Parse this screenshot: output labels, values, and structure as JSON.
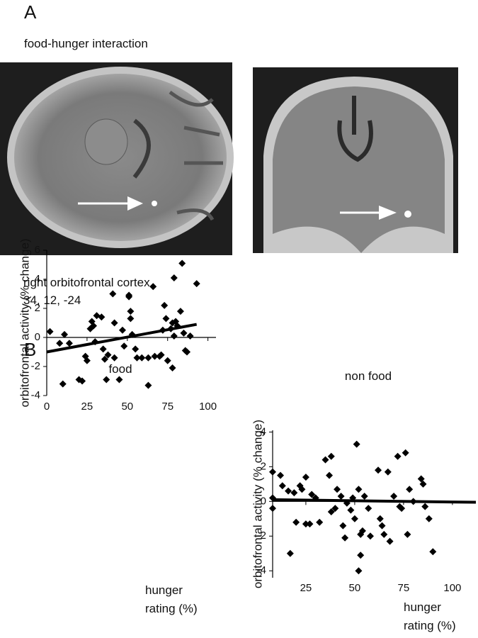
{
  "panel_a": {
    "letter": "A",
    "title": "food-hunger interaction",
    "region": "right orbitofrontal cortex",
    "coordinates": "34, 12, -24"
  },
  "panel_b": {
    "letter": "B"
  },
  "chart_data": [
    {
      "type": "scatter",
      "title": "food",
      "y_label": "orbitofrontal activity (% change)",
      "x_label": [
        "hunger",
        "rating (%)"
      ],
      "color": "#000000",
      "x": [
        2,
        8,
        11,
        14,
        10,
        20,
        22,
        24,
        25,
        27,
        28,
        29,
        30,
        31,
        34,
        35,
        36,
        37,
        38,
        41,
        42,
        42,
        45,
        47,
        48,
        51,
        51,
        52,
        52,
        53,
        55,
        56,
        59,
        63,
        63,
        66,
        67,
        70,
        71,
        72,
        73,
        74,
        75,
        77,
        78,
        79,
        80,
        81,
        83,
        84,
        85,
        86,
        87,
        89,
        93,
        78,
        79
      ],
      "values": [
        0.4,
        -0.4,
        0.2,
        -0.4,
        -3.2,
        -2.9,
        -3.0,
        -1.3,
        -1.6,
        0.6,
        1.1,
        0.8,
        -0.3,
        1.5,
        1.4,
        -0.8,
        -1.5,
        -2.9,
        -1.2,
        3.0,
        -1.4,
        1.0,
        -2.9,
        0.5,
        -0.6,
        2.9,
        2.8,
        1.8,
        1.3,
        0.2,
        -0.8,
        -1.4,
        -1.4,
        -1.4,
        -3.3,
        3.5,
        -1.3,
        -1.3,
        -1.2,
        0.5,
        2.2,
        1.3,
        -1.6,
        0.6,
        -2.1,
        4.1,
        1.1,
        0.8,
        1.8,
        5.1,
        0.3,
        -0.9,
        -1.0,
        0.1,
        3.7,
        1.0,
        0.1
      ],
      "trend_x": [
        0,
        93
      ],
      "trend_y": [
        -1.0,
        0.9
      ],
      "xlim": [
        0,
        105
      ],
      "ylim": [
        -4,
        6
      ],
      "xticks": [
        0,
        25,
        50,
        75,
        100
      ],
      "yticks": [
        -4,
        -2,
        0,
        2,
        4,
        6
      ]
    },
    {
      "type": "scatter",
      "title": "non food",
      "y_label": "orbitofrontal activity (% change)",
      "x_label": [
        "hunger",
        "rating (%)"
      ],
      "color": "#000000",
      "x": [
        8,
        8,
        8,
        12,
        13,
        16,
        17,
        19,
        20,
        22,
        23,
        25,
        25,
        27,
        28,
        30,
        32,
        35,
        38,
        37,
        38,
        40,
        41,
        43,
        44,
        45,
        46,
        48,
        49,
        50,
        51,
        52,
        53,
        53,
        54,
        52,
        55,
        57,
        58,
        62,
        63,
        64,
        65,
        67,
        68,
        70,
        72,
        73,
        74,
        76,
        77,
        78,
        80,
        84,
        85,
        86,
        88,
        90
      ],
      "values": [
        1.7,
        0.2,
        -0.4,
        1.5,
        0.9,
        0.6,
        -3.0,
        0.5,
        -1.2,
        0.9,
        0.7,
        1.4,
        -1.3,
        -1.3,
        0.4,
        0.2,
        -1.2,
        2.4,
        2.6,
        1.5,
        -0.6,
        -0.4,
        0.7,
        0.3,
        -1.4,
        -2.1,
        -0.1,
        -0.5,
        0.2,
        -1.0,
        3.3,
        0.7,
        -1.9,
        -3.1,
        -1.7,
        -4.0,
        0.3,
        -0.4,
        -2.0,
        1.8,
        -1.0,
        -1.4,
        -1.9,
        1.7,
        -2.3,
        0.3,
        2.6,
        -0.3,
        -0.4,
        2.8,
        -1.9,
        0.7,
        0.0,
        1.3,
        1.0,
        -0.3,
        -1.0,
        -2.9
      ],
      "trend_x": [
        8,
        112
      ],
      "trend_y": [
        0.1,
        -0.05
      ],
      "xlim": [
        8,
        112
      ],
      "ylim": [
        -4.4,
        4.1
      ],
      "xticks": [
        25,
        50,
        75,
        100
      ],
      "yticks": [
        -4,
        -2,
        0,
        2,
        4
      ]
    }
  ]
}
